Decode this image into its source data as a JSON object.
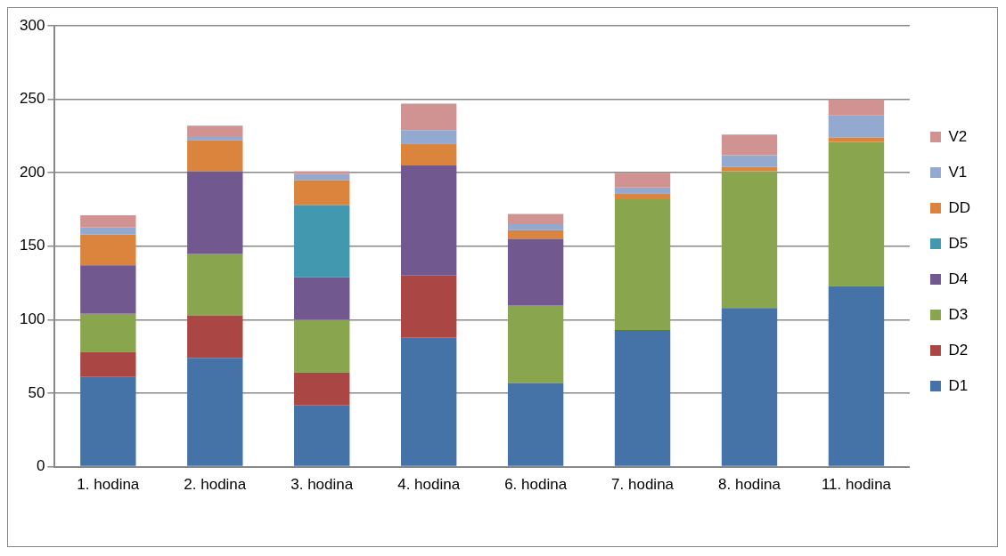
{
  "chart_data": {
    "type": "bar",
    "stacked": true,
    "categories": [
      "1. hodina",
      "2. hodina",
      "3. hodina",
      "4. hodina",
      "6. hodina",
      "7. hodina",
      "8. hodina",
      "11. hodina"
    ],
    "series": [
      {
        "name": "D1",
        "color": "#4572a7",
        "values": [
          61,
          74,
          42,
          88,
          57,
          93,
          108,
          123
        ]
      },
      {
        "name": "D2",
        "color": "#aa4643",
        "values": [
          17,
          29,
          22,
          42,
          0,
          0,
          0,
          0
        ]
      },
      {
        "name": "D3",
        "color": "#89a54e",
        "values": [
          26,
          42,
          36,
          0,
          53,
          89,
          93,
          98
        ]
      },
      {
        "name": "D4",
        "color": "#71588f",
        "values": [
          33,
          56,
          29,
          75,
          45,
          0,
          0,
          0
        ]
      },
      {
        "name": "D5",
        "color": "#4198af",
        "values": [
          0,
          0,
          49,
          0,
          0,
          0,
          0,
          0
        ]
      },
      {
        "name": "DD",
        "color": "#db843d",
        "values": [
          21,
          21,
          17,
          15,
          6,
          4,
          3,
          3
        ]
      },
      {
        "name": "V1",
        "color": "#93a9cf",
        "values": [
          5,
          3,
          4,
          9,
          4,
          4,
          8,
          15
        ]
      },
      {
        "name": "V2",
        "color": "#d19392",
        "values": [
          8,
          7,
          2,
          18,
          7,
          10,
          14,
          11
        ]
      }
    ],
    "ylim": [
      0,
      300
    ],
    "yticks": [
      0,
      50,
      100,
      150,
      200,
      250,
      300
    ],
    "grid": "y",
    "legend": "right"
  }
}
